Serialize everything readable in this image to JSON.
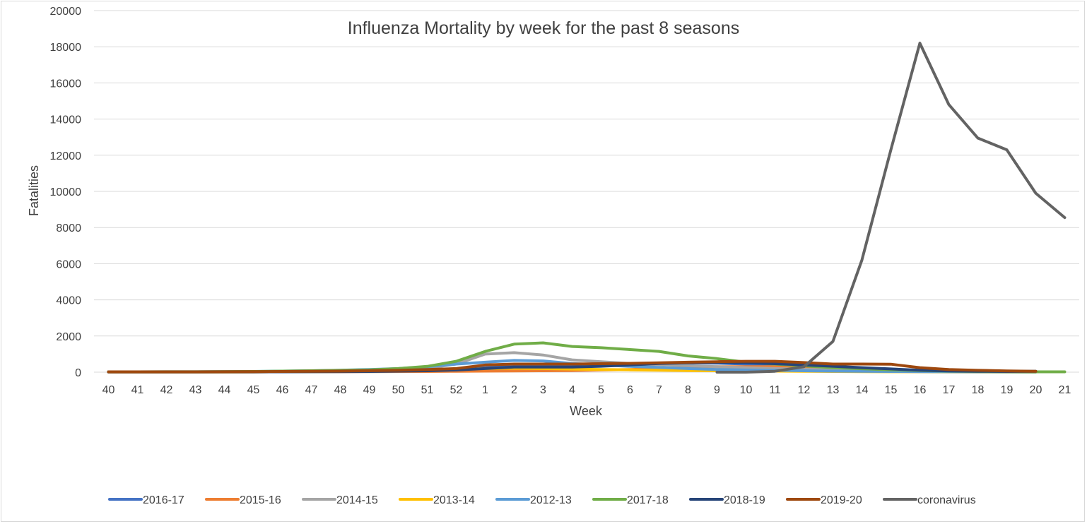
{
  "chart_data": {
    "type": "line",
    "title": "Influenza Mortality by week for the past 8 seasons",
    "xlabel": "Week",
    "ylabel": "Fatalities",
    "ylim": [
      0,
      20000
    ],
    "yticks": [
      "0",
      "2000",
      "4000",
      "6000",
      "8000",
      "10000",
      "12000",
      "14000",
      "16000",
      "18000",
      "20000"
    ],
    "grid": "horizontal",
    "legend": "bottom",
    "categories": [
      "40",
      "41",
      "42",
      "43",
      "44",
      "45",
      "46",
      "47",
      "48",
      "49",
      "50",
      "51",
      "52",
      "1",
      "2",
      "3",
      "4",
      "5",
      "6",
      "7",
      "8",
      "9",
      "10",
      "11",
      "12",
      "13",
      "14",
      "15",
      "16",
      "17",
      "18",
      "19",
      "20",
      "21"
    ],
    "series": [
      {
        "name": "2016-17",
        "color": "#4472C4",
        "values": [
          20,
          20,
          20,
          20,
          25,
          30,
          40,
          50,
          60,
          80,
          100,
          120,
          150,
          250,
          350,
          400,
          420,
          450,
          480,
          500,
          520,
          500,
          450,
          400,
          330,
          250,
          170,
          110,
          70,
          45,
          30,
          20,
          15,
          null
        ]
      },
      {
        "name": "2015-16",
        "color": "#ED7D31",
        "values": [
          15,
          15,
          15,
          15,
          15,
          15,
          20,
          25,
          25,
          30,
          35,
          40,
          50,
          60,
          70,
          80,
          90,
          120,
          150,
          200,
          250,
          300,
          300,
          300,
          270,
          220,
          160,
          110,
          70,
          50,
          35,
          25,
          20,
          null
        ]
      },
      {
        "name": "2014-15",
        "color": "#A5A5A5",
        "values": [
          20,
          20,
          20,
          20,
          25,
          30,
          50,
          60,
          80,
          120,
          150,
          220,
          450,
          1000,
          1080,
          950,
          680,
          580,
          480,
          420,
          360,
          300,
          250,
          200,
          160,
          120,
          90,
          70,
          50,
          40,
          30,
          25,
          20,
          null
        ]
      },
      {
        "name": "2013-14",
        "color": "#FFC000",
        "values": [
          10,
          10,
          10,
          10,
          10,
          15,
          20,
          25,
          40,
          60,
          80,
          110,
          150,
          200,
          220,
          200,
          170,
          150,
          130,
          110,
          90,
          80,
          70,
          60,
          50,
          40,
          30,
          25,
          20,
          15,
          10,
          10,
          10,
          null
        ]
      },
      {
        "name": "2012-13",
        "color": "#5B9BD5",
        "values": [
          20,
          20,
          25,
          25,
          30,
          40,
          60,
          80,
          110,
          150,
          200,
          300,
          450,
          550,
          650,
          620,
          480,
          400,
          320,
          260,
          200,
          150,
          120,
          100,
          80,
          60,
          50,
          40,
          30,
          25,
          20,
          15,
          10,
          null
        ]
      },
      {
        "name": "2017-18",
        "color": "#70AD47",
        "values": [
          20,
          20,
          25,
          25,
          30,
          40,
          60,
          80,
          100,
          130,
          200,
          320,
          600,
          1150,
          1550,
          1620,
          1420,
          1350,
          1250,
          1150,
          900,
          750,
          550,
          450,
          350,
          250,
          190,
          130,
          90,
          60,
          40,
          30,
          20,
          20
        ]
      },
      {
        "name": "2018-19",
        "color": "#264478",
        "values": [
          10,
          10,
          10,
          10,
          15,
          15,
          20,
          25,
          30,
          40,
          60,
          80,
          120,
          200,
          280,
          280,
          280,
          330,
          400,
          480,
          520,
          530,
          520,
          470,
          400,
          330,
          250,
          180,
          110,
          70,
          50,
          40,
          50,
          null
        ]
      },
      {
        "name": "2019-20",
        "color": "#9E480E",
        "values": [
          20,
          20,
          20,
          20,
          25,
          30,
          40,
          50,
          60,
          80,
          100,
          150,
          200,
          400,
          450,
          450,
          450,
          470,
          490,
          520,
          550,
          580,
          600,
          600,
          530,
          450,
          450,
          440,
          250,
          150,
          100,
          70,
          50,
          null
        ]
      },
      {
        "name": "coronavirus",
        "color": "#636363",
        "values": [
          null,
          null,
          null,
          null,
          null,
          null,
          null,
          null,
          null,
          null,
          null,
          null,
          null,
          null,
          null,
          null,
          null,
          null,
          null,
          null,
          null,
          0,
          0,
          50,
          300,
          1700,
          6200,
          12300,
          18200,
          14800,
          12950,
          12300,
          9900,
          8550
        ]
      }
    ]
  }
}
